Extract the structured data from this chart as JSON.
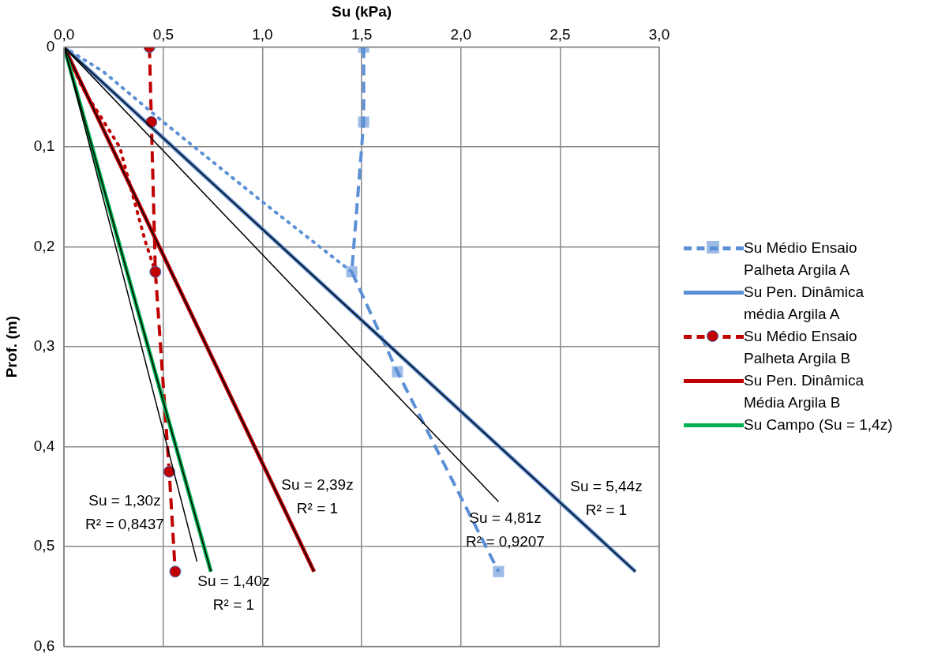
{
  "chart_data": {
    "type": "line",
    "xlabel": "Su (kPa)",
    "ylabel": "Prof. (m)",
    "xlim": [
      0,
      3
    ],
    "xticks": [
      {
        "value": 0,
        "label": "0,0"
      },
      {
        "value": 0.5,
        "label": "0,5"
      },
      {
        "value": 1,
        "label": "1,0"
      },
      {
        "value": 1.5,
        "label": "1,5"
      },
      {
        "value": 2,
        "label": "2,0"
      },
      {
        "value": 2.5,
        "label": "2,5"
      },
      {
        "value": 3,
        "label": "3,0"
      }
    ],
    "ylim": [
      0.6,
      0
    ],
    "yticks": [
      0,
      {
        "value": 0.1,
        "label": "0,1"
      },
      {
        "value": 0.2,
        "label": "0,2"
      },
      {
        "value": 0.3,
        "label": "0,3"
      },
      {
        "value": 0.4,
        "label": "0,4"
      },
      {
        "value": 0.5,
        "label": "0,5"
      },
      {
        "value": 0.6,
        "label": "0,6"
      }
    ],
    "grid": true,
    "legend": "right",
    "series": [
      {
        "color": "#5b8fd6",
        "line_style": "dotted",
        "marker": "none",
        "x": [
          0,
          0.2,
          0.5,
          1.0,
          1.45
        ],
        "values": [
          0,
          0.025,
          0.075,
          0.155,
          0.225
        ]
      },
      {
        "color": "#c00000",
        "line_style": "dotted",
        "marker": "none",
        "x": [
          0,
          0.09,
          0.28,
          0.41,
          0.46
        ],
        "values": [
          0,
          0.04,
          0.1,
          0.195,
          0.225
        ]
      },
      {
        "name": "Su Médio Ensaio Palheta Argila A",
        "color": "#5b8fd6",
        "line_style": "dashed",
        "marker": "square",
        "x": [
          1.51,
          1.51,
          1.45,
          1.68,
          2.19
        ],
        "values": [
          0,
          0.075,
          0.225,
          0.325,
          0.525
        ]
      },
      {
        "name": "Su Pen. Dinâmica média Argila A",
        "color": "#5b8fd6",
        "line_style": "solid",
        "marker": "none",
        "x": [
          0,
          2.88
        ],
        "values": [
          0,
          0.525
        ]
      },
      {
        "name": "Su Médio Ensaio Palheta Argila B",
        "color": "#c00000",
        "line_style": "dashed",
        "marker": "circle",
        "x": [
          0.43,
          0.44,
          0.46,
          0.53,
          0.56
        ],
        "values": [
          0,
          0.075,
          0.225,
          0.425,
          0.525
        ]
      },
      {
        "name": "Su Pen. Dinâmica Média Argila B",
        "color": "#c00000",
        "line_style": "solid",
        "marker": "none",
        "x": [
          0,
          1.26
        ],
        "values": [
          0,
          0.525
        ]
      },
      {
        "name": "Su Campo (Su = 1,4z)",
        "color": "#00b050",
        "line_style": "solid",
        "marker": "none",
        "x": [
          0,
          0.74
        ],
        "values": [
          0,
          0.525
        ]
      },
      {
        "color": "#000000",
        "line_style": "solid",
        "marker": "none",
        "x": [
          0,
          2.88
        ],
        "values": [
          0,
          0.525
        ]
      },
      {
        "color": "#000000",
        "line_style": "solid",
        "marker": "none",
        "x": [
          0,
          1.26
        ],
        "values": [
          0,
          0.525
        ]
      },
      {
        "color": "#000000",
        "line_style": "solid",
        "marker": "none",
        "x": [
          0,
          0.74
        ],
        "values": [
          0,
          0.525
        ]
      },
      {
        "color": "#000000",
        "line_style": "solid",
        "marker": "none",
        "x": [
          0,
          2.19
        ],
        "values": [
          0,
          0.455
        ]
      },
      {
        "color": "#000000",
        "line_style": "solid",
        "marker": "none",
        "x": [
          0,
          0.67
        ],
        "values": [
          0,
          0.515
        ]
      }
    ],
    "annotations": [
      "Su = 1,30z\nR² = 0,8437",
      "Su = 2,39z\nR² = 1",
      "Su = 4,81z\nR² = 0,9207",
      "Su = 5,44z\nR² = 1",
      "Su = 1,40z\nR² = 1"
    ]
  }
}
